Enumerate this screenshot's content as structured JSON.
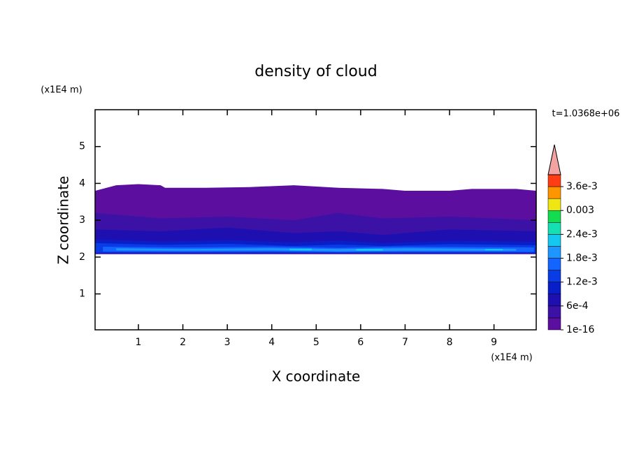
{
  "chart_data": {
    "type": "contour",
    "title": "density of cloud",
    "xlabel": "X coordinate",
    "ylabel": "Z coordinate",
    "x_unit": "(x1E4 m)",
    "y_unit": "(x1E4 m)",
    "time_label": "t=1.0368e+06",
    "xlim": [
      0.025,
      9.95
    ],
    "ylim": [
      0.025,
      6.0
    ],
    "xticks": [
      1,
      2,
      3,
      4,
      5,
      6,
      7,
      8,
      9
    ],
    "yticks": [
      1,
      2,
      3,
      4,
      5
    ],
    "levels": [
      1e-16,
      0.0003,
      0.0006,
      0.0009,
      0.0012,
      0.0015,
      0.0018,
      0.0021,
      0.0024,
      0.0027,
      0.003,
      0.0033,
      0.0036
    ],
    "colors": [
      "#5c0f9f",
      "#3c12a6",
      "#1e0fb0",
      "#0a1ec8",
      "#0a3ce6",
      "#1464ff",
      "#1e96ff",
      "#14c8f0",
      "#14e0b4",
      "#14dc50",
      "#f0e614",
      "#ff9600",
      "#ff3c14"
    ],
    "extend_color": "#f4a3a3",
    "cbar_lim": [
      0,
      0.0039
    ],
    "cbar_ticks": [
      1e-16,
      {
        "value": 0.0006,
        "label": "6e-4"
      },
      {
        "value": 0.0012,
        "label": "1.2e-3"
      },
      {
        "value": 0.0018,
        "label": "1.8e-3"
      },
      {
        "value": 0.0024,
        "label": "2.4e-3"
      },
      0.003,
      {
        "value": 0.0036,
        "label": "3.6e-3"
      }
    ],
    "regions": [
      {
        "level": 0,
        "x": [
          0.03,
          0.5,
          1.0,
          1.5,
          1.6,
          2.5,
          3.5,
          4.5,
          5.5,
          6.5,
          7.0,
          8.0,
          8.5,
          9.0,
          9.5,
          9.95,
          9.95,
          0.03
        ],
        "z": [
          3.8,
          3.95,
          3.98,
          3.95,
          3.88,
          3.88,
          3.9,
          3.95,
          3.88,
          3.85,
          3.8,
          3.8,
          3.85,
          3.85,
          3.85,
          3.8,
          2.08,
          2.08
        ]
      },
      {
        "level": 1,
        "x": [
          0.03,
          1.5,
          3.0,
          4.5,
          5.5,
          6.5,
          8.0,
          9.95,
          9.95,
          0.03
        ],
        "z": [
          3.2,
          3.05,
          3.1,
          3.0,
          3.2,
          3.05,
          3.1,
          3.0,
          2.08,
          2.08
        ]
      },
      {
        "level": 2,
        "x": [
          0.03,
          1.5,
          3.0,
          4.5,
          5.5,
          6.5,
          8.0,
          9.95,
          9.95,
          0.03
        ],
        "z": [
          2.75,
          2.7,
          2.8,
          2.65,
          2.7,
          2.6,
          2.75,
          2.7,
          2.1,
          2.1
        ]
      },
      {
        "level": 3,
        "x": [
          0.03,
          1.5,
          3.0,
          4.5,
          5.5,
          6.5,
          8.0,
          9.95,
          9.95,
          0.03
        ],
        "z": [
          2.48,
          2.42,
          2.46,
          2.4,
          2.45,
          2.38,
          2.44,
          2.42,
          2.1,
          2.1
        ]
      },
      {
        "level": 4,
        "x": [
          0.03,
          1.5,
          3.0,
          4.5,
          5.5,
          6.5,
          8.0,
          9.95,
          9.95,
          0.03
        ],
        "z": [
          2.38,
          2.33,
          2.36,
          2.3,
          2.34,
          2.3,
          2.35,
          2.32,
          2.12,
          2.12
        ]
      },
      {
        "level": 5,
        "x": [
          0.2,
          2.0,
          4.0,
          5.5,
          7.0,
          9.9,
          9.9,
          7.0,
          5.5,
          4.0,
          2.0,
          0.2
        ],
        "z": [
          2.28,
          2.26,
          2.28,
          2.25,
          2.28,
          2.26,
          2.14,
          2.14,
          2.13,
          2.15,
          2.14,
          2.15
        ]
      },
      {
        "level": 6,
        "x": [
          0.5,
          2.0,
          4.0,
          5.5,
          7.0,
          9.5,
          9.5,
          7.0,
          5.5,
          4.0,
          2.0,
          0.5
        ],
        "z": [
          2.24,
          2.22,
          2.24,
          2.22,
          2.24,
          2.22,
          2.17,
          2.17,
          2.16,
          2.18,
          2.17,
          2.18
        ]
      },
      {
        "level": 7,
        "x": [
          4.4,
          4.9,
          4.9,
          4.4
        ],
        "z": [
          2.23,
          2.23,
          2.18,
          2.18
        ]
      },
      {
        "level": 7,
        "x": [
          5.9,
          6.5,
          6.5,
          5.9
        ],
        "z": [
          2.22,
          2.22,
          2.17,
          2.17
        ]
      },
      {
        "level": 7,
        "x": [
          8.8,
          9.2,
          9.2,
          8.8
        ],
        "z": [
          2.22,
          2.22,
          2.18,
          2.18
        ]
      }
    ]
  }
}
